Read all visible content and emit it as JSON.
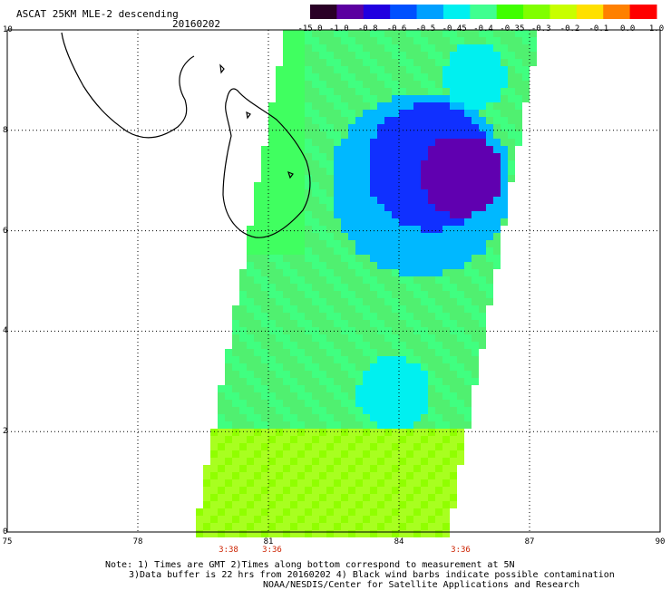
{
  "header": {
    "title": "ASCAT 25KM MLE-2 descending",
    "date": "20160202"
  },
  "colorbar": {
    "labels": [
      "-15.0",
      "-1.0",
      "-0.8",
      "-0.6",
      "-0.5",
      "-0.45",
      "-0.4",
      "-0.35",
      "-0.3",
      "-0.2",
      "-0.1",
      "0.0",
      "1.0"
    ],
    "colors": [
      "#2a0026",
      "#5b00a0",
      "#2000e0",
      "#0050ff",
      "#00a0ff",
      "#00f0f0",
      "#40ff90",
      "#40ff00",
      "#80ff00",
      "#c8ff00",
      "#ffe000",
      "#ff8000",
      "#ff0000"
    ]
  },
  "axes": {
    "x_ticks": [
      "75",
      "78",
      "81",
      "84",
      "87",
      "90"
    ],
    "y_ticks": [
      "0",
      "2",
      "4",
      "6",
      "8",
      "10"
    ],
    "lon_range": [
      75,
      90
    ],
    "lat_range": [
      0,
      10
    ]
  },
  "times": [
    "3:38",
    "3:36",
    "3:36"
  ],
  "notes": {
    "line1": "Note: 1) Times are GMT 2)Times along bottom correspond to measurement at 5N",
    "line2": "3)Data buffer is 22 hrs from 20160202 4) Black wind barbs indicate possible contamination",
    "line3": "NOAA/NESDIS/Center for Satellite Applications and Research"
  }
}
